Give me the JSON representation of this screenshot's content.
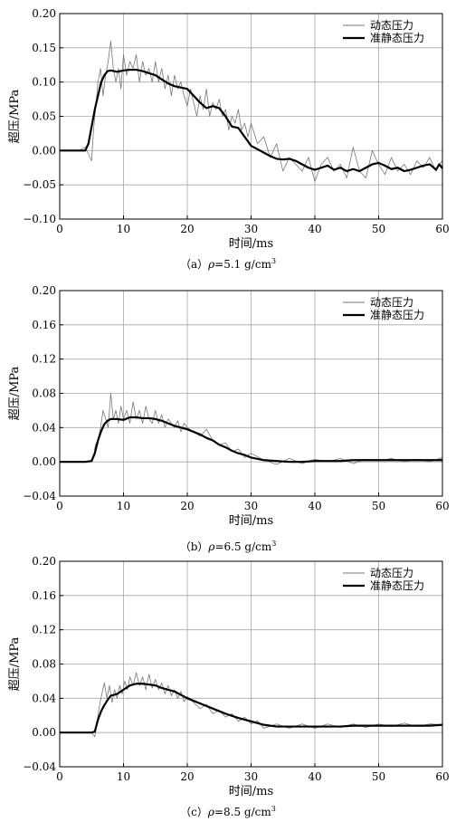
{
  "chart_data": [
    {
      "type": "line",
      "caption": {
        "prefix": "（a）",
        "symbol": "ρ",
        "value": "=5.1 g/cm",
        "sup": "3"
      },
      "xlabel": "时间/ms",
      "ylabel": "超压/MPa",
      "xlim": [
        0,
        60
      ],
      "ylim": [
        -0.1,
        0.2
      ],
      "xticks": [
        "0",
        "10",
        "20",
        "30",
        "40",
        "50",
        "60"
      ],
      "yticks": [
        "−0.10",
        "−0.05",
        "0.00",
        "0.05",
        "0.10",
        "0.15",
        "0.20"
      ],
      "grid": true,
      "legend_position": "top-right",
      "series": [
        {
          "name": "动态压力",
          "style": "thin-gray",
          "x": [
            0,
            3,
            4,
            4.5,
            5,
            5.3,
            5.6,
            6,
            6.4,
            6.8,
            7.2,
            7.6,
            8,
            8.4,
            8.8,
            9.2,
            9.6,
            10,
            10.5,
            11,
            11.5,
            12,
            12.5,
            13,
            13.5,
            14,
            14.5,
            15,
            15.5,
            16,
            16.5,
            17,
            17.5,
            18,
            18.5,
            19,
            19.5,
            20,
            20.5,
            21,
            21.5,
            22,
            22.5,
            23,
            23.5,
            24,
            24.5,
            25,
            25.5,
            26,
            26.5,
            27,
            27.5,
            28,
            28.5,
            29,
            29.5,
            30,
            31,
            32,
            33,
            34,
            35,
            36,
            37,
            38,
            39,
            40,
            41,
            42,
            43,
            44,
            45,
            46,
            47,
            48,
            49,
            50,
            51,
            52,
            53,
            54,
            55,
            56,
            57,
            58,
            59,
            59.5,
            60
          ],
          "y": [
            0,
            0,
            0.005,
            -0.005,
            -0.015,
            0.03,
            0.06,
            0.1,
            0.12,
            0.08,
            0.11,
            0.13,
            0.16,
            0.12,
            0.1,
            0.12,
            0.09,
            0.14,
            0.11,
            0.13,
            0.12,
            0.14,
            0.1,
            0.13,
            0.11,
            0.12,
            0.1,
            0.13,
            0.1,
            0.12,
            0.09,
            0.11,
            0.08,
            0.11,
            0.09,
            0.1,
            0.08,
            0.065,
            0.09,
            0.07,
            0.05,
            0.08,
            0.06,
            0.09,
            0.05,
            0.07,
            0.06,
            0.075,
            0.05,
            0.06,
            0.03,
            0.05,
            0.04,
            0.06,
            0.03,
            0.04,
            0.02,
            0.04,
            0.01,
            0.02,
            -0.01,
            0.01,
            -0.03,
            -0.01,
            -0.02,
            -0.03,
            -0.01,
            -0.045,
            -0.02,
            -0.01,
            -0.03,
            -0.02,
            -0.04,
            0.005,
            -0.03,
            -0.04,
            0.0,
            -0.02,
            -0.035,
            -0.01,
            -0.03,
            -0.02,
            -0.035,
            -0.015,
            -0.025,
            -0.01,
            -0.03,
            -0.02,
            -0.015
          ]
        },
        {
          "name": "准静态压力",
          "style": "thick-black",
          "x": [
            0,
            3,
            4,
            4.5,
            5,
            5.5,
            6,
            6.5,
            7,
            7.5,
            8,
            9,
            10,
            11,
            12,
            13,
            14,
            15,
            16,
            17,
            18,
            19,
            20,
            21,
            22,
            23,
            24,
            25,
            26,
            27,
            28,
            29,
            30,
            31,
            32,
            33,
            34,
            35,
            36,
            37,
            38,
            39,
            40,
            41,
            42,
            43,
            44,
            45,
            46,
            47,
            48,
            49,
            50,
            51,
            52,
            53,
            54,
            55,
            56,
            57,
            58,
            59,
            59.5,
            60
          ],
          "y": [
            0,
            0,
            0,
            0.01,
            0.035,
            0.06,
            0.08,
            0.1,
            0.11,
            0.116,
            0.117,
            0.115,
            0.117,
            0.118,
            0.118,
            0.116,
            0.113,
            0.11,
            0.104,
            0.098,
            0.094,
            0.092,
            0.09,
            0.08,
            0.07,
            0.062,
            0.065,
            0.062,
            0.05,
            0.035,
            0.033,
            0.02,
            0.007,
            0.002,
            -0.003,
            -0.008,
            -0.012,
            -0.013,
            -0.012,
            -0.015,
            -0.02,
            -0.025,
            -0.028,
            -0.025,
            -0.022,
            -0.028,
            -0.025,
            -0.03,
            -0.027,
            -0.03,
            -0.025,
            -0.02,
            -0.018,
            -0.022,
            -0.027,
            -0.025,
            -0.03,
            -0.028,
            -0.025,
            -0.022,
            -0.02,
            -0.028,
            -0.02,
            -0.026
          ]
        }
      ]
    },
    {
      "type": "line",
      "caption": {
        "prefix": "（b）",
        "symbol": "ρ",
        "value": "=6.5 g/cm",
        "sup": "3"
      },
      "xlabel": "时间/ms",
      "ylabel": "超压/MPa",
      "xlim": [
        0,
        60
      ],
      "ylim": [
        -0.04,
        0.2
      ],
      "xticks": [
        "0",
        "10",
        "20",
        "30",
        "40",
        "50",
        "60"
      ],
      "yticks": [
        "−0.04",
        "0.00",
        "0.04",
        "0.08",
        "0.12",
        "0.16",
        "0.20"
      ],
      "grid": true,
      "legend_position": "top-right",
      "series": [
        {
          "name": "动态压力",
          "style": "thin-gray",
          "x": [
            0,
            4,
            5,
            5.3,
            5.6,
            6,
            6.4,
            6.8,
            7.2,
            7.6,
            8,
            8.4,
            8.8,
            9.2,
            9.6,
            10,
            10.5,
            11,
            11.5,
            12,
            12.5,
            13,
            13.5,
            14,
            14.5,
            15,
            15.5,
            16,
            16.5,
            17,
            17.5,
            18,
            18.5,
            19,
            19.5,
            20,
            21,
            22,
            23,
            24,
            25,
            26,
            27,
            28,
            29,
            30,
            32,
            34,
            36,
            38,
            40,
            42,
            44,
            46,
            48,
            50,
            52,
            54,
            56,
            58,
            60
          ],
          "y": [
            0,
            0,
            0,
            0.005,
            0.02,
            0.025,
            0.04,
            0.06,
            0.05,
            0.04,
            0.08,
            0.05,
            0.06,
            0.045,
            0.065,
            0.05,
            0.06,
            0.045,
            0.07,
            0.05,
            0.06,
            0.045,
            0.065,
            0.05,
            0.045,
            0.06,
            0.045,
            0.055,
            0.04,
            0.05,
            0.045,
            0.04,
            0.048,
            0.035,
            0.045,
            0.04,
            0.035,
            0.03,
            0.038,
            0.025,
            0.02,
            0.022,
            0.012,
            0.015,
            0.005,
            0.01,
            0.002,
            -0.003,
            0.004,
            -0.002,
            0.003,
            0.0,
            0.004,
            -0.002,
            0.003,
            0.001,
            0.004,
            0.0,
            0.003,
            0.0,
            0.005
          ]
        },
        {
          "name": "准静态压力",
          "style": "thick-black",
          "x": [
            0,
            4,
            5,
            5.5,
            6,
            6.5,
            7,
            7.5,
            8,
            9,
            10,
            11,
            12,
            13,
            14,
            15,
            16,
            17,
            18,
            19,
            20,
            21,
            22,
            23,
            24,
            25,
            26,
            27,
            28,
            29,
            30,
            32,
            34,
            36,
            38,
            40,
            42,
            44,
            46,
            48,
            50,
            52,
            54,
            56,
            58,
            60
          ],
          "y": [
            0,
            0,
            0.001,
            0.01,
            0.025,
            0.036,
            0.044,
            0.048,
            0.05,
            0.05,
            0.049,
            0.052,
            0.052,
            0.051,
            0.051,
            0.05,
            0.048,
            0.045,
            0.042,
            0.04,
            0.038,
            0.035,
            0.032,
            0.028,
            0.025,
            0.02,
            0.017,
            0.013,
            0.01,
            0.008,
            0.005,
            0.002,
            0.001,
            0.0,
            0.0,
            0.001,
            0.001,
            0.001,
            0.002,
            0.002,
            0.002,
            0.002,
            0.002,
            0.002,
            0.002,
            0.002
          ]
        }
      ]
    },
    {
      "type": "line",
      "caption": {
        "prefix": "（c）",
        "symbol": "ρ",
        "value": "=8.5 g/cm",
        "sup": "3"
      },
      "xlabel": "时间/ms",
      "ylabel": "超压/MPa",
      "xlim": [
        0,
        60
      ],
      "ylim": [
        -0.04,
        0.2
      ],
      "xticks": [
        "0",
        "10",
        "20",
        "30",
        "40",
        "50",
        "60"
      ],
      "yticks": [
        "−0.04",
        "0.00",
        "0.04",
        "0.08",
        "0.12",
        "0.16",
        "0.20"
      ],
      "grid": true,
      "legend_position": "top-right",
      "series": [
        {
          "name": "动态压力",
          "style": "thin-gray",
          "x": [
            0,
            4,
            5,
            5.5,
            5.8,
            6.2,
            6.6,
            7,
            7.4,
            7.8,
            8.2,
            8.6,
            9,
            9.4,
            9.8,
            10.2,
            10.6,
            11,
            11.5,
            12,
            12.5,
            13,
            13.5,
            14,
            14.5,
            15,
            15.5,
            16,
            16.5,
            17,
            17.5,
            18,
            18.5,
            19,
            19.5,
            20,
            21,
            22,
            23,
            24,
            25,
            26,
            27,
            28,
            29,
            30,
            31,
            32,
            34,
            36,
            38,
            40,
            42,
            44,
            46,
            48,
            50,
            52,
            54,
            56,
            58,
            60
          ],
          "y": [
            0,
            0,
            0,
            -0.005,
            0.01,
            0.03,
            0.045,
            0.058,
            0.04,
            0.055,
            0.035,
            0.05,
            0.04,
            0.055,
            0.045,
            0.06,
            0.05,
            0.065,
            0.055,
            0.07,
            0.055,
            0.065,
            0.05,
            0.068,
            0.052,
            0.062,
            0.05,
            0.058,
            0.045,
            0.055,
            0.043,
            0.05,
            0.04,
            0.048,
            0.036,
            0.042,
            0.035,
            0.028,
            0.033,
            0.022,
            0.026,
            0.018,
            0.022,
            0.013,
            0.018,
            0.01,
            0.014,
            0.005,
            0.01,
            0.005,
            0.01,
            0.005,
            0.01,
            0.006,
            0.01,
            0.006,
            0.01,
            0.007,
            0.011,
            0.007,
            0.01,
            0.009
          ]
        },
        {
          "name": "准静态压力",
          "style": "thick-black",
          "x": [
            0,
            4,
            5,
            5.5,
            6,
            6.5,
            7,
            7.5,
            8,
            9,
            10,
            11,
            12,
            13,
            14,
            15,
            16,
            17,
            18,
            19,
            20,
            22,
            24,
            26,
            28,
            30,
            32,
            34,
            36,
            38,
            40,
            42,
            44,
            46,
            48,
            50,
            52,
            54,
            56,
            58,
            60
          ],
          "y": [
            0,
            0,
            0,
            0.001,
            0.015,
            0.025,
            0.032,
            0.038,
            0.043,
            0.045,
            0.05,
            0.055,
            0.057,
            0.057,
            0.056,
            0.055,
            0.052,
            0.05,
            0.048,
            0.044,
            0.04,
            0.034,
            0.028,
            0.022,
            0.017,
            0.013,
            0.009,
            0.007,
            0.007,
            0.007,
            0.007,
            0.007,
            0.007,
            0.008,
            0.008,
            0.008,
            0.008,
            0.008,
            0.008,
            0.008,
            0.009
          ]
        }
      ]
    }
  ]
}
